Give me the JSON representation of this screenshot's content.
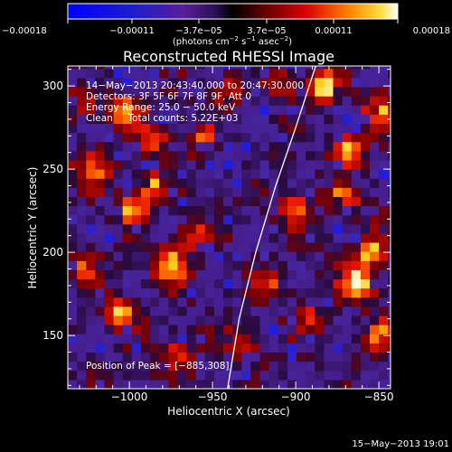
{
  "chart_data": {
    "type": "heatmap",
    "title": "Reconstructed RHESSI Image",
    "xlabel": "Heliocentric X (arcsec)",
    "ylabel": "Heliocentric Y (arcsec)",
    "xlim": [
      -1037,
      -843
    ],
    "ylim": [
      118,
      312
    ],
    "x_ticks": [
      {
        "value": -1000,
        "label": "−1000"
      },
      {
        "value": -950,
        "label": "−950"
      },
      {
        "value": -900,
        "label": "−900"
      },
      {
        "value": -850,
        "label": "−850"
      }
    ],
    "y_ticks": [
      {
        "value": 150,
        "label": "150"
      },
      {
        "value": 200,
        "label": "200"
      },
      {
        "value": 250,
        "label": "250"
      },
      {
        "value": 300,
        "label": "300"
      }
    ],
    "colorbar": {
      "range": [
        -0.00018,
        0.00018
      ],
      "ticks": [
        {
          "value": -0.00018,
          "label": "−0.00018"
        },
        {
          "value": -0.00011,
          "label": "−0.00011"
        },
        {
          "value": -3.7e-05,
          "label": "−3.7e−05"
        },
        {
          "value": 3.7e-05,
          "label": "3.7e−05"
        },
        {
          "value": 0.00011,
          "label": "0.00011"
        },
        {
          "value": 0.00018,
          "label": "0.00018"
        }
      ],
      "units_prefix": "(photons cm",
      "units_exp1": "−2",
      "units_mid": " s",
      "units_exp2": "−1",
      "units_mid2": " asec",
      "units_exp3": "−2",
      "units_suffix": ")"
    },
    "annotations": [
      "14−May−2013 20:43:40.000 to 20:47:30.000",
      "Detectors: 3F 5F 6F 7F 8F 9F, Att 0",
      "Energy Range: 25.0 − 50.0 keV",
      "Clean     Total counts: 5.22E+03"
    ],
    "peak_label": "Position of Peak = [−885,308]",
    "peak": {
      "x": -885,
      "y": 308
    },
    "limb_line": [
      [
        -941,
        118
      ],
      [
        -934,
        160
      ],
      [
        -924,
        200
      ],
      [
        -912,
        240
      ],
      [
        -900,
        275
      ],
      [
        -888,
        312
      ]
    ],
    "hotspots": [
      {
        "x": -1002,
        "y": 285,
        "v": 0.75,
        "s": 7
      },
      {
        "x": -986,
        "y": 268,
        "v": 0.6,
        "s": 6
      },
      {
        "x": -1022,
        "y": 250,
        "v": 0.55,
        "s": 8
      },
      {
        "x": -985,
        "y": 240,
        "v": 0.7,
        "s": 7
      },
      {
        "x": -998,
        "y": 225,
        "v": 0.75,
        "s": 6
      },
      {
        "x": -975,
        "y": 192,
        "v": 0.95,
        "s": 7
      },
      {
        "x": -960,
        "y": 210,
        "v": 0.6,
        "s": 6
      },
      {
        "x": -1005,
        "y": 165,
        "v": 0.8,
        "s": 6
      },
      {
        "x": -1028,
        "y": 190,
        "v": 0.6,
        "s": 6
      },
      {
        "x": -1028,
        "y": 290,
        "v": 0.5,
        "s": 6
      },
      {
        "x": -955,
        "y": 268,
        "v": 0.55,
        "s": 6
      },
      {
        "x": -940,
        "y": 298,
        "v": 0.45,
        "s": 6
      },
      {
        "x": -972,
        "y": 140,
        "v": 0.45,
        "s": 7
      },
      {
        "x": -930,
        "y": 145,
        "v": 0.5,
        "s": 7
      },
      {
        "x": -900,
        "y": 225,
        "v": 0.55,
        "s": 7
      },
      {
        "x": -915,
        "y": 180,
        "v": 0.5,
        "s": 6
      },
      {
        "x": -882,
        "y": 300,
        "v": 1.0,
        "s": 6
      },
      {
        "x": -868,
        "y": 262,
        "v": 0.9,
        "s": 6
      },
      {
        "x": -850,
        "y": 285,
        "v": 0.9,
        "s": 6
      },
      {
        "x": -872,
        "y": 232,
        "v": 0.75,
        "s": 6
      },
      {
        "x": -862,
        "y": 182,
        "v": 0.95,
        "s": 7
      },
      {
        "x": -855,
        "y": 200,
        "v": 0.85,
        "s": 6
      },
      {
        "x": -848,
        "y": 150,
        "v": 0.75,
        "s": 6
      },
      {
        "x": -890,
        "y": 160,
        "v": 0.45,
        "s": 6
      },
      {
        "x": -910,
        "y": 300,
        "v": 0.45,
        "s": 6
      }
    ]
  },
  "timestamp": "15−May−2013 19:01"
}
